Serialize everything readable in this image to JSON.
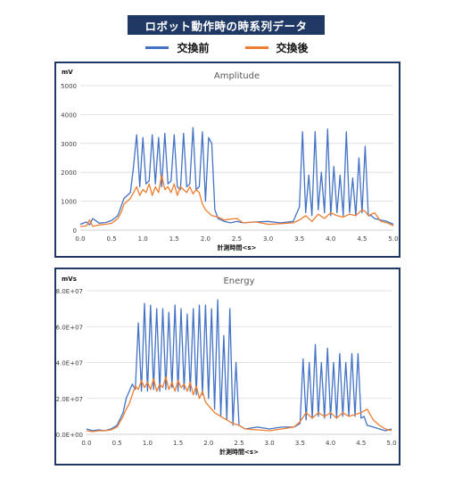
{
  "header": {
    "title": "ロボット動作時の時系列データ"
  },
  "legend": [
    {
      "name": "交換前",
      "color": "#4472c4"
    },
    {
      "name": "交換後",
      "color": "#ed7d31"
    }
  ],
  "chart_data": [
    {
      "type": "line",
      "title": "Amplitude",
      "unit_label": "mV",
      "xlabel": "計測時間<s>",
      "xlim": [
        0,
        5
      ],
      "ylim": [
        0,
        5000
      ],
      "x_ticks": [
        "0.0",
        "0.5",
        "1.0",
        "1.5",
        "2.0",
        "2.5",
        "3.0",
        "3.5",
        "4.0",
        "4.5",
        "5.0"
      ],
      "y_ticks": [
        "0",
        "1000",
        "2000",
        "3000",
        "4000",
        "5000"
      ],
      "grid": true,
      "series": [
        {
          "name": "交換前",
          "color": "#4472c4",
          "x": [
            0.0,
            0.1,
            0.15,
            0.2,
            0.3,
            0.4,
            0.5,
            0.6,
            0.65,
            0.7,
            0.75,
            0.8,
            0.85,
            0.9,
            0.95,
            1.0,
            1.05,
            1.1,
            1.15,
            1.2,
            1.25,
            1.3,
            1.35,
            1.4,
            1.45,
            1.5,
            1.55,
            1.6,
            1.65,
            1.7,
            1.75,
            1.8,
            1.85,
            1.9,
            1.95,
            2.0,
            2.05,
            2.1,
            2.15,
            2.2,
            2.3,
            2.4,
            2.5,
            2.6,
            2.8,
            3.0,
            3.2,
            3.4,
            3.5,
            3.55,
            3.6,
            3.65,
            3.7,
            3.75,
            3.8,
            3.85,
            3.9,
            3.95,
            4.0,
            4.05,
            4.1,
            4.15,
            4.2,
            4.25,
            4.3,
            4.35,
            4.4,
            4.45,
            4.5,
            4.55,
            4.6,
            4.65,
            4.7,
            4.8,
            4.9,
            5.0
          ],
          "y": [
            200,
            280,
            180,
            400,
            240,
            260,
            330,
            500,
            800,
            1100,
            1200,
            1300,
            2200,
            3300,
            1500,
            3200,
            1600,
            1700,
            3300,
            1600,
            3200,
            1500,
            3350,
            1600,
            1700,
            3300,
            1500,
            1400,
            3350,
            1500,
            1600,
            3550,
            1400,
            1500,
            3400,
            1000,
            3200,
            3000,
            700,
            400,
            300,
            250,
            300,
            250,
            280,
            300,
            250,
            300,
            800,
            3400,
            600,
            1900,
            500,
            3400,
            700,
            2000,
            600,
            3500,
            500,
            2200,
            600,
            1900,
            500,
            3400,
            600,
            1800,
            500,
            2500,
            600,
            2900,
            500,
            500,
            400,
            350,
            300,
            200
          ]
        },
        {
          "name": "交換後",
          "color": "#ed7d31",
          "x": [
            0.0,
            0.1,
            0.15,
            0.2,
            0.3,
            0.4,
            0.5,
            0.6,
            0.65,
            0.7,
            0.75,
            0.8,
            0.85,
            0.9,
            0.95,
            1.0,
            1.05,
            1.1,
            1.15,
            1.2,
            1.25,
            1.3,
            1.35,
            1.4,
            1.45,
            1.5,
            1.55,
            1.6,
            1.65,
            1.7,
            1.75,
            1.8,
            1.85,
            1.9,
            1.95,
            2.0,
            2.1,
            2.2,
            2.3,
            2.4,
            2.5,
            2.6,
            2.8,
            3.0,
            3.2,
            3.4,
            3.5,
            3.6,
            3.7,
            3.8,
            3.9,
            4.0,
            4.1,
            4.2,
            4.3,
            4.4,
            4.5,
            4.55,
            4.6,
            4.7,
            4.8,
            4.9,
            5.0
          ],
          "y": [
            120,
            150,
            350,
            130,
            180,
            200,
            230,
            400,
            600,
            900,
            1000,
            1100,
            1300,
            1500,
            1200,
            1400,
            1300,
            1600,
            1200,
            1500,
            1300,
            1900,
            1400,
            1500,
            1300,
            1600,
            1200,
            1500,
            1400,
            1300,
            1500,
            1250,
            1400,
            1300,
            900,
            700,
            500,
            450,
            350,
            380,
            400,
            250,
            280,
            200,
            220,
            250,
            350,
            500,
            300,
            550,
            400,
            600,
            500,
            450,
            550,
            500,
            700,
            650,
            500,
            600,
            300,
            250,
            150
          ]
        }
      ]
    },
    {
      "type": "line",
      "title": "Energy",
      "unit_label": "mVs",
      "xlabel": "計測時間<s>",
      "xlim": [
        0,
        5
      ],
      "ylim": [
        0,
        80000000
      ],
      "x_ticks": [
        "0.0",
        "0.5",
        "1.0",
        "1.5",
        "2.0",
        "2.5",
        "3.0",
        "3.5",
        "4.0",
        "4.5",
        "5.0"
      ],
      "y_ticks": [
        "0.0E+00",
        "2.0E+07",
        "4.0E+07",
        "6.0E+07",
        "8.0E+07"
      ],
      "grid": true,
      "series": [
        {
          "name": "交換前",
          "color": "#4472c4",
          "x": [
            0.0,
            0.1,
            0.2,
            0.3,
            0.4,
            0.5,
            0.6,
            0.65,
            0.7,
            0.75,
            0.8,
            0.85,
            0.9,
            0.95,
            1.0,
            1.05,
            1.1,
            1.15,
            1.2,
            1.25,
            1.3,
            1.35,
            1.4,
            1.45,
            1.5,
            1.55,
            1.6,
            1.65,
            1.7,
            1.75,
            1.8,
            1.85,
            1.9,
            1.95,
            2.0,
            2.05,
            2.1,
            2.15,
            2.2,
            2.25,
            2.3,
            2.35,
            2.4,
            2.45,
            2.5,
            2.6,
            2.8,
            3.0,
            3.2,
            3.4,
            3.5,
            3.55,
            3.6,
            3.65,
            3.7,
            3.75,
            3.8,
            3.85,
            3.9,
            3.95,
            4.0,
            4.05,
            4.1,
            4.15,
            4.2,
            4.25,
            4.3,
            4.35,
            4.4,
            4.45,
            4.5,
            4.55,
            4.6,
            4.7,
            4.8,
            4.9,
            5.0
          ],
          "y": [
            3000000,
            2000000,
            2500000,
            2000000,
            3000000,
            5000000,
            12000000,
            20000000,
            24000000,
            28000000,
            25000000,
            62000000,
            24000000,
            73000000,
            24000000,
            72000000,
            25000000,
            70000000,
            24000000,
            70000000,
            25000000,
            68000000,
            26000000,
            72000000,
            24000000,
            70000000,
            25000000,
            67000000,
            24000000,
            70000000,
            22000000,
            72000000,
            22000000,
            72000000,
            20000000,
            70000000,
            14000000,
            75000000,
            10000000,
            55000000,
            8000000,
            70000000,
            5000000,
            40000000,
            5000000,
            3000000,
            4000000,
            3000000,
            4000000,
            4000000,
            6000000,
            42000000,
            8000000,
            40000000,
            9000000,
            50000000,
            10000000,
            40000000,
            9000000,
            48000000,
            9000000,
            40000000,
            9000000,
            45000000,
            10000000,
            40000000,
            10000000,
            45000000,
            10000000,
            45000000,
            9000000,
            10000000,
            5000000,
            4000000,
            3000000,
            2000000,
            3000000
          ]
        },
        {
          "name": "交換後",
          "color": "#ed7d31",
          "x": [
            0.0,
            0.1,
            0.2,
            0.3,
            0.4,
            0.5,
            0.6,
            0.65,
            0.7,
            0.75,
            0.8,
            0.85,
            0.9,
            0.95,
            1.0,
            1.05,
            1.1,
            1.15,
            1.2,
            1.25,
            1.3,
            1.35,
            1.4,
            1.45,
            1.5,
            1.55,
            1.6,
            1.65,
            1.7,
            1.75,
            1.8,
            1.85,
            1.9,
            1.95,
            2.0,
            2.1,
            2.2,
            2.3,
            2.4,
            2.5,
            2.6,
            2.8,
            3.0,
            3.2,
            3.4,
            3.5,
            3.6,
            3.7,
            3.8,
            3.9,
            4.0,
            4.1,
            4.2,
            4.3,
            4.4,
            4.5,
            4.6,
            4.7,
            4.8,
            4.9,
            5.0
          ],
          "y": [
            2000000,
            1500000,
            2000000,
            2000000,
            2500000,
            4000000,
            10000000,
            14000000,
            17000000,
            22000000,
            27000000,
            25000000,
            30000000,
            26000000,
            29000000,
            25000000,
            31000000,
            24000000,
            28000000,
            26000000,
            32000000,
            25000000,
            29000000,
            24000000,
            30000000,
            26000000,
            28000000,
            24000000,
            29000000,
            22000000,
            27000000,
            20000000,
            24000000,
            18000000,
            16000000,
            12000000,
            10000000,
            8000000,
            6000000,
            5000000,
            3000000,
            2500000,
            2000000,
            3000000,
            4000000,
            7000000,
            12000000,
            9000000,
            12000000,
            10000000,
            12000000,
            9000000,
            12000000,
            10000000,
            11000000,
            12000000,
            14000000,
            8000000,
            5000000,
            3000000,
            2000000
          ]
        }
      ]
    }
  ]
}
